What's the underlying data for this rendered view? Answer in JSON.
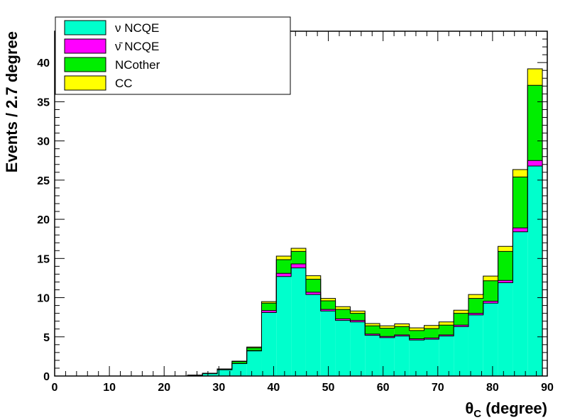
{
  "chart_data": {
    "type": "bar",
    "stacked": true,
    "xlabel": "θC (degree)",
    "xlabel_symbol": "θ",
    "xlabel_sub": "C",
    "xlabel_rest": " (degree)",
    "ylabel": "Events / 2.7 degree",
    "xlim": [
      0,
      90
    ],
    "ylim": [
      0,
      44
    ],
    "bin_width": 2.7,
    "bin_edges": [
      0,
      2.7,
      5.4,
      8.1,
      10.8,
      13.5,
      16.2,
      18.9,
      21.6,
      24.3,
      27,
      29.7,
      32.4,
      35.1,
      37.8,
      40.5,
      43.2,
      45.9,
      48.6,
      51.3,
      54,
      56.7,
      59.4,
      62.1,
      64.8,
      67.5,
      70.2,
      72.9,
      75.6,
      78.3,
      81,
      83.7,
      86.4,
      89.1
    ],
    "x_ticks": [
      "0",
      "10",
      "20",
      "30",
      "40",
      "50",
      "60",
      "70",
      "80",
      "90"
    ],
    "y_ticks": [
      "0",
      "5",
      "10",
      "15",
      "20",
      "25",
      "30",
      "35",
      "40"
    ],
    "series": [
      {
        "name": "ν NCQE",
        "color": "#00ffcc",
        "values": [
          0,
          0,
          0,
          0,
          0,
          0,
          0,
          0,
          0,
          0.1,
          0.3,
          0.8,
          1.6,
          3.2,
          8.1,
          12.7,
          13.8,
          10.4,
          8.3,
          7.1,
          6.9,
          5.2,
          4.9,
          5.1,
          4.6,
          4.7,
          5.1,
          6.3,
          7.8,
          9.3,
          11.9,
          18.4,
          26.8
        ]
      },
      {
        "name": "ν̄ NCQE",
        "color": "#ff00ff",
        "values": [
          0,
          0,
          0,
          0,
          0,
          0,
          0,
          0,
          0,
          0,
          0,
          0,
          0,
          0.05,
          0.25,
          0.4,
          0.5,
          0.3,
          0.2,
          0.2,
          0.2,
          0.15,
          0.15,
          0.15,
          0.15,
          0.15,
          0.15,
          0.2,
          0.2,
          0.25,
          0.3,
          0.5,
          0.7
        ]
      },
      {
        "name": "NCother",
        "color": "#00ee00",
        "values": [
          0,
          0,
          0,
          0,
          0,
          0,
          0,
          0,
          0,
          0,
          0.05,
          0.1,
          0.25,
          0.35,
          0.95,
          1.75,
          1.6,
          1.65,
          1.1,
          1.2,
          0.9,
          1.05,
          1.05,
          1.05,
          1.05,
          1.2,
          1.25,
          1.5,
          1.9,
          2.6,
          3.7,
          6.5,
          9.6
        ]
      },
      {
        "name": "CC",
        "color": "#ffff00",
        "values": [
          0,
          0,
          0,
          0,
          0,
          0,
          0,
          0,
          0,
          0,
          0,
          0,
          0.05,
          0.1,
          0.2,
          0.45,
          0.4,
          0.45,
          0.3,
          0.35,
          0.3,
          0.3,
          0.3,
          0.35,
          0.35,
          0.4,
          0.4,
          0.4,
          0.5,
          0.6,
          0.65,
          0.95,
          2.1
        ]
      }
    ]
  }
}
